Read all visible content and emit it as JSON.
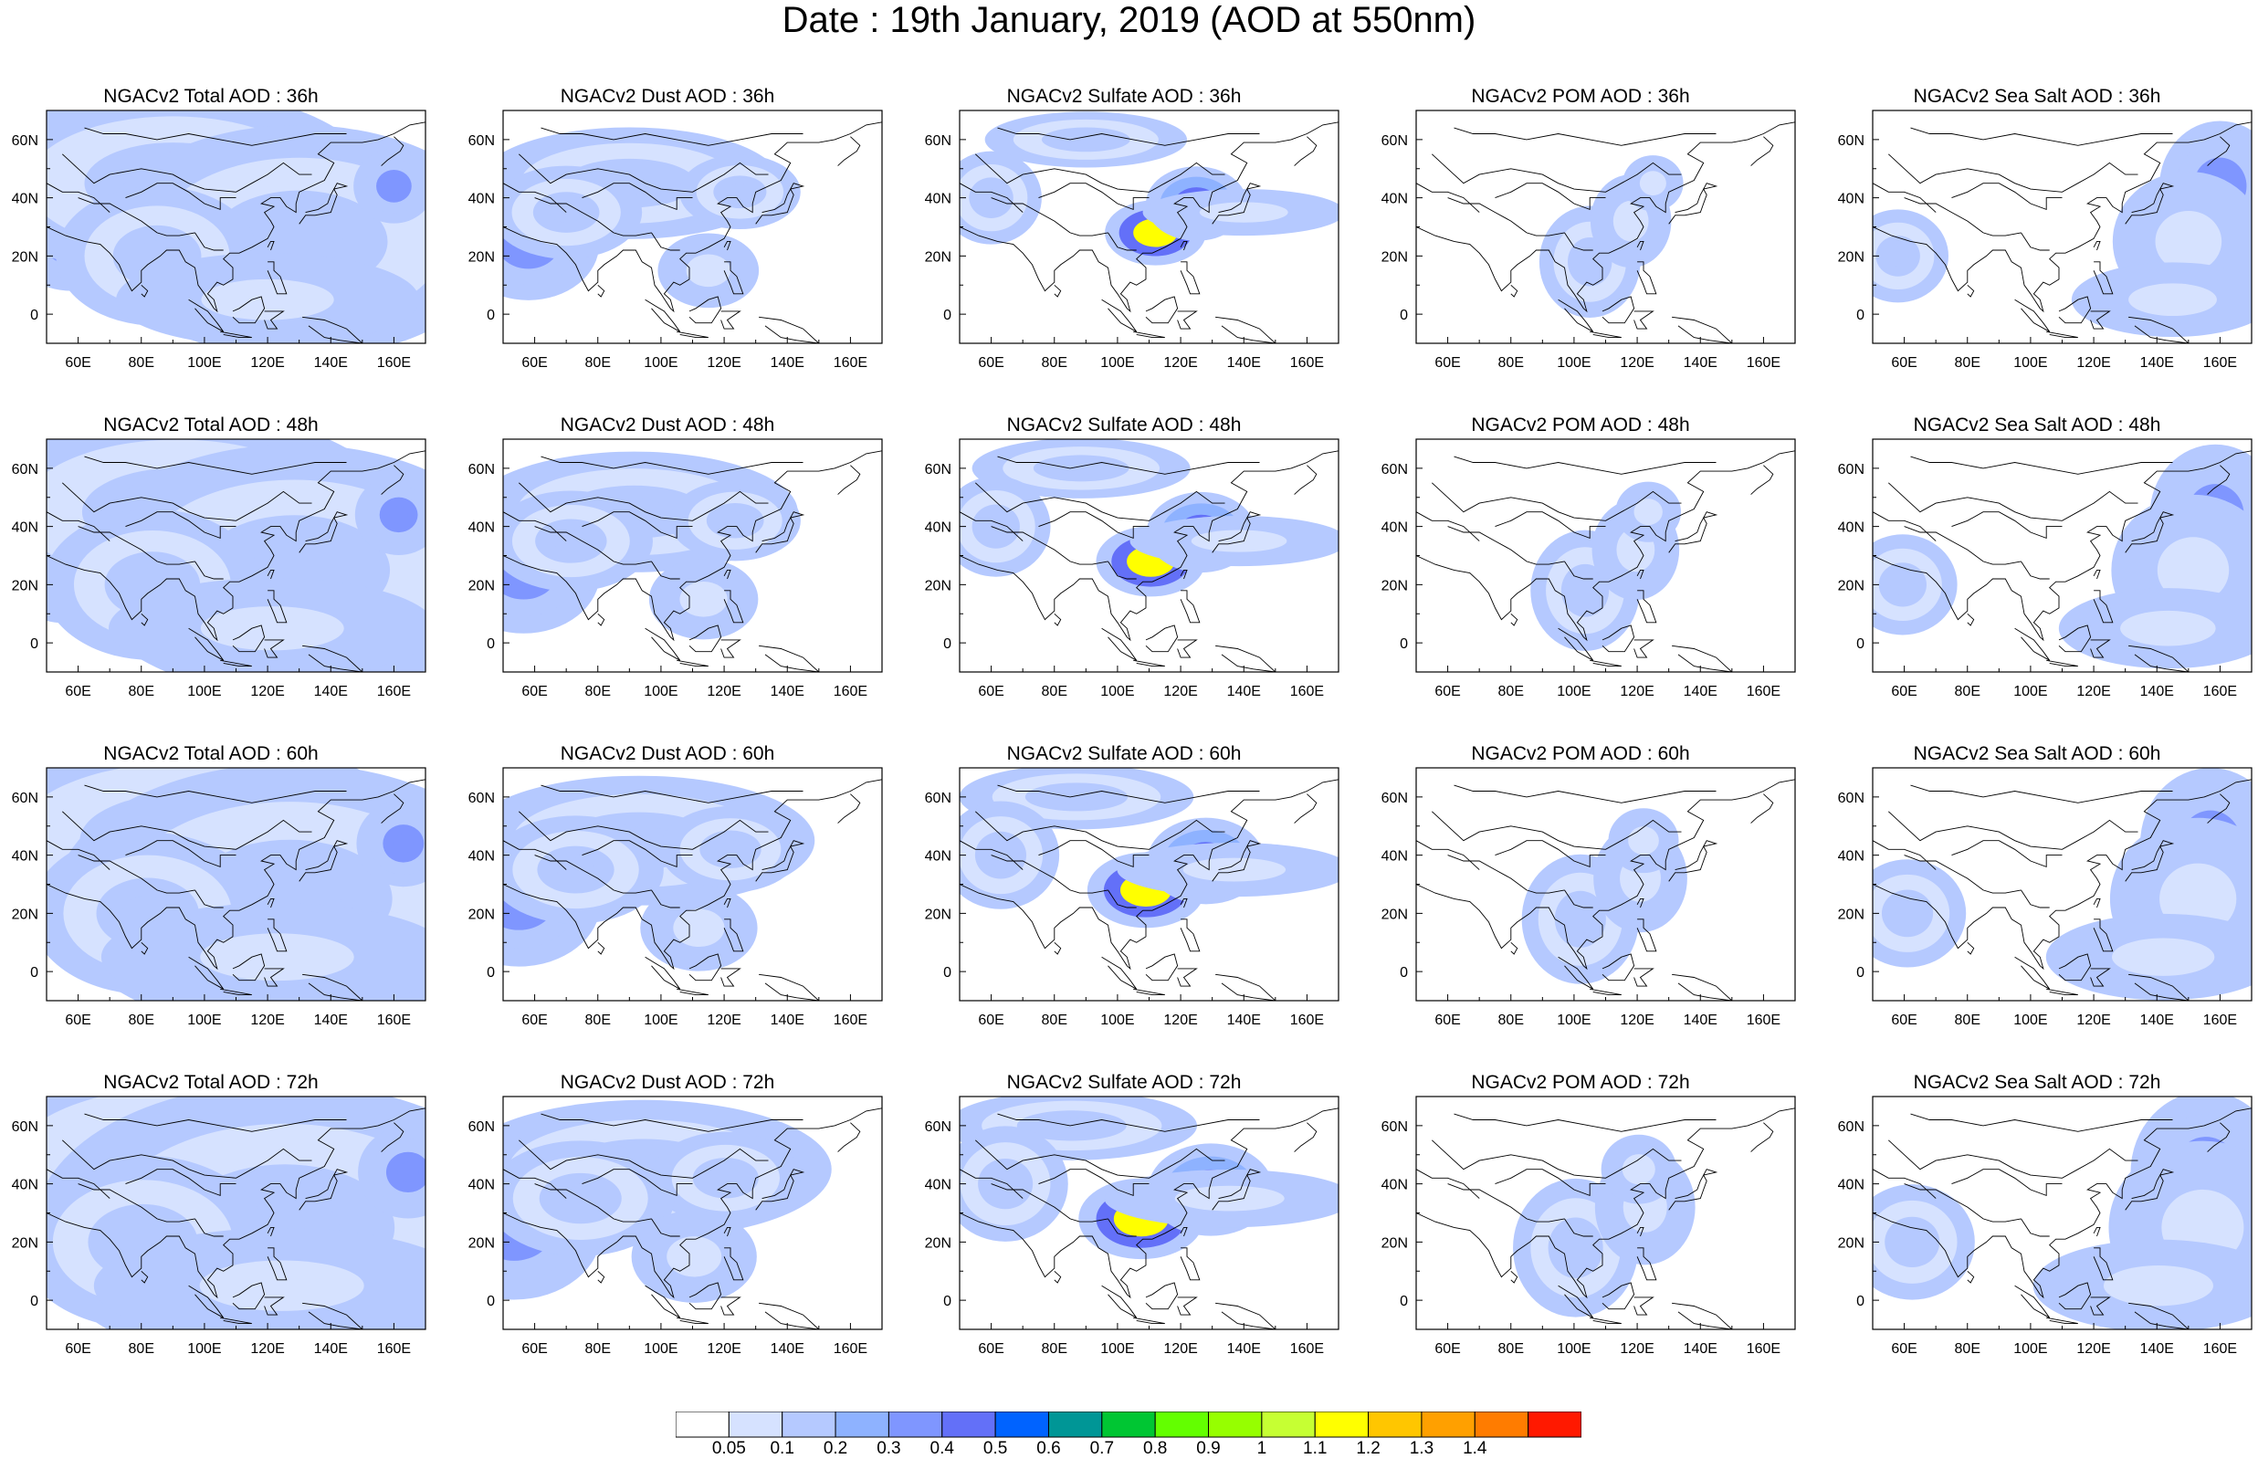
{
  "title": "Date : 19th January, 2019 (AOD at 550nm)",
  "axes": {
    "lon_ticks": [
      "60E",
      "80E",
      "100E",
      "120E",
      "140E",
      "160E"
    ],
    "lat_ticks": [
      "60N",
      "40N",
      "20N",
      "0"
    ],
    "lon_range": [
      50,
      170
    ],
    "lat_range": [
      -10,
      70
    ]
  },
  "rows": [
    "36h",
    "48h",
    "60h",
    "72h"
  ],
  "columns": [
    "Total",
    "Dust",
    "Sulfate",
    "POM",
    "Sea Salt"
  ],
  "panels": [
    [
      "NGACv2 Total AOD : 36h",
      "NGACv2 Dust AOD : 36h",
      "NGACv2 Sulfate AOD : 36h",
      "NGACv2 POM AOD : 36h",
      "NGACv2 Sea Salt AOD : 36h"
    ],
    [
      "NGACv2 Total AOD : 48h",
      "NGACv2 Dust AOD : 48h",
      "NGACv2 Sulfate AOD : 48h",
      "NGACv2 POM AOD : 48h",
      "NGACv2 Sea Salt AOD : 48h"
    ],
    [
      "NGACv2 Total AOD : 60h",
      "NGACv2 Dust AOD : 60h",
      "NGACv2 Sulfate AOD : 60h",
      "NGACv2 POM AOD : 60h",
      "NGACv2 Sea Salt AOD : 60h"
    ],
    [
      "NGACv2 Total AOD : 72h",
      "NGACv2 Dust AOD : 72h",
      "NGACv2 Sulfate AOD : 72h",
      "NGACv2 POM AOD : 72h",
      "NGACv2 Sea Salt  AOD : 72h"
    ]
  ],
  "colorbar": {
    "labels": [
      "0.05",
      "0.1",
      "0.2",
      "0.3",
      "0.4",
      "0.5",
      "0.6",
      "0.7",
      "0.8",
      "0.9",
      "1",
      "1.1",
      "1.2",
      "1.3",
      "1.4"
    ],
    "colors": [
      "#ffffff",
      "#d6e2ff",
      "#b5c9ff",
      "#8eb2ff",
      "#7f96ff",
      "#6370f8",
      "#0063ff",
      "#009696",
      "#00c633",
      "#63ff00",
      "#96ff00",
      "#c6ff33",
      "#ffff00",
      "#ffc600",
      "#ffa000",
      "#ff7c00",
      "#ff1900"
    ]
  }
}
